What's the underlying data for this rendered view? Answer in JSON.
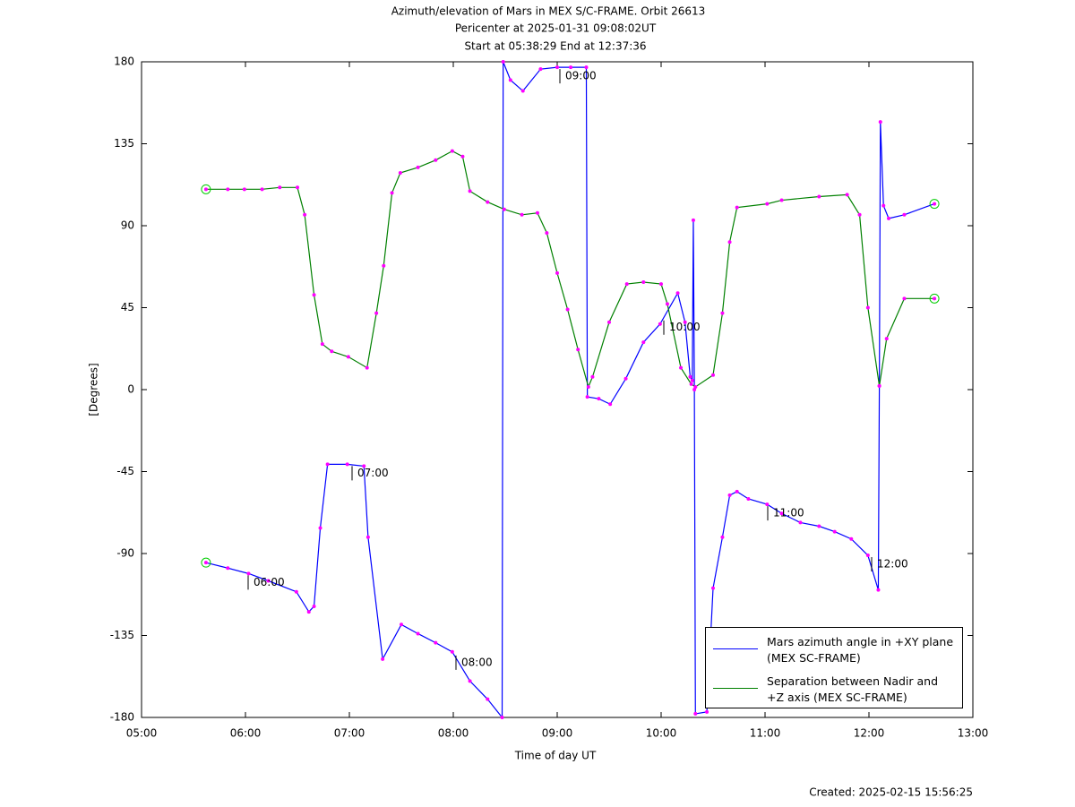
{
  "chart_data": {
    "type": "line",
    "title": "Azimuth/elevation of Mars in MEX S/C-FRAME.  Orbit 26613",
    "subtitle": [
      "Pericenter at 2025-01-31 09:08:02UT",
      "Start at 05:38:29 End at 12:37:36"
    ],
    "xlabel": "Time of day UT",
    "ylabel": "[Degrees]",
    "footer": "Created: 2025-02-15 15:56:25",
    "xlim": [
      5,
      13
    ],
    "xticks": [
      {
        "value": 5,
        "label": "05:00"
      },
      {
        "value": 6,
        "label": "06:00"
      },
      {
        "value": 7,
        "label": "07:00"
      },
      {
        "value": 8,
        "label": "08:00"
      },
      {
        "value": 9,
        "label": "09:00"
      },
      {
        "value": 10,
        "label": "10:00"
      },
      {
        "value": 11,
        "label": "11:00"
      },
      {
        "value": 12,
        "label": "12:00"
      },
      {
        "value": 13,
        "label": "13:00"
      }
    ],
    "ylim": [
      -180,
      180
    ],
    "yticks": [
      180,
      135,
      90,
      45,
      0,
      -45,
      -90,
      -135,
      -180
    ],
    "grid": false,
    "series": [
      {
        "name": "Mars azimuth angle in +XY plane (MEX SC-FRAME)",
        "color": "#0000ff",
        "x": [
          5.62,
          5.83,
          6.03,
          6.22,
          6.49,
          6.61,
          6.66,
          6.72,
          6.79,
          6.98,
          7.14,
          7.18,
          7.32,
          7.5,
          7.66,
          7.83,
          7.99,
          8.16,
          8.33,
          8.47,
          8.48,
          8.55,
          8.67,
          8.84,
          9.0,
          9.13,
          9.28,
          9.29,
          9.4,
          9.51,
          9.66,
          9.83,
          9.99,
          10.16,
          10.23,
          10.28,
          10.3,
          10.31,
          10.32,
          10.33,
          10.44,
          10.5,
          10.59,
          10.66,
          10.73,
          10.84,
          11.02,
          11.16,
          11.34,
          11.52,
          11.67,
          11.83,
          11.99,
          12.09,
          12.1,
          12.11,
          12.14,
          12.19,
          12.34,
          12.63
        ],
        "values": [
          -95,
          -98,
          -101,
          -105,
          -111,
          -122,
          -119,
          -76,
          -41,
          -41,
          -42,
          -81,
          -148,
          -129,
          -134,
          -139,
          -144,
          -160,
          -170,
          -180,
          180,
          170,
          164,
          176,
          177,
          177,
          177,
          -4,
          -5,
          -8,
          6,
          26,
          36,
          53,
          37,
          7,
          5,
          93,
          0,
          -178,
          -177,
          -109,
          -81,
          -58,
          -56,
          -60,
          -63,
          -68,
          -73,
          -75,
          -78,
          -82,
          -91,
          -110,
          2,
          147,
          101,
          94,
          96,
          102
        ]
      },
      {
        "name": "Separation between Nadir and +Z axis (MEX SC-FRAME)",
        "color": "#008000",
        "x": [
          5.62,
          5.83,
          5.99,
          6.16,
          6.33,
          6.5,
          6.57,
          6.66,
          6.74,
          6.83,
          6.99,
          7.17,
          7.26,
          7.33,
          7.41,
          7.49,
          7.66,
          7.83,
          7.99,
          8.09,
          8.16,
          8.33,
          8.49,
          8.66,
          8.81,
          8.9,
          9.0,
          9.1,
          9.2,
          9.3,
          9.34,
          9.5,
          9.67,
          9.83,
          10.0,
          10.06,
          10.19,
          10.29,
          10.33,
          10.5,
          10.59,
          10.66,
          10.73,
          11.02,
          11.16,
          11.52,
          11.79,
          11.91,
          11.99,
          12.1,
          12.17,
          12.34,
          12.63
        ],
        "values": [
          110,
          110,
          110,
          110,
          111,
          111,
          96,
          52,
          25,
          21,
          18,
          12,
          42,
          68,
          108,
          119,
          122,
          126,
          131,
          128,
          109,
          103,
          99,
          96,
          97,
          86,
          64,
          44,
          22,
          1.5,
          7,
          37,
          58,
          59,
          58,
          47,
          12,
          3,
          1.5,
          8,
          42,
          81,
          100,
          102,
          104,
          106,
          107,
          96,
          45,
          2,
          28,
          50,
          50
        ]
      }
    ],
    "annotations": [
      {
        "text": "06:00",
        "x": 6,
        "y": -101
      },
      {
        "text": "07:00",
        "x": 7,
        "y": -41
      },
      {
        "text": "08:00",
        "x": 8,
        "y": -145
      },
      {
        "text": "09:00",
        "x": 9,
        "y": 177
      },
      {
        "text": "10:00",
        "x": 10,
        "y": 39
      },
      {
        "text": "11:00",
        "x": 11,
        "y": -63
      },
      {
        "text": "12:00",
        "x": 12,
        "y": -91
      }
    ]
  }
}
